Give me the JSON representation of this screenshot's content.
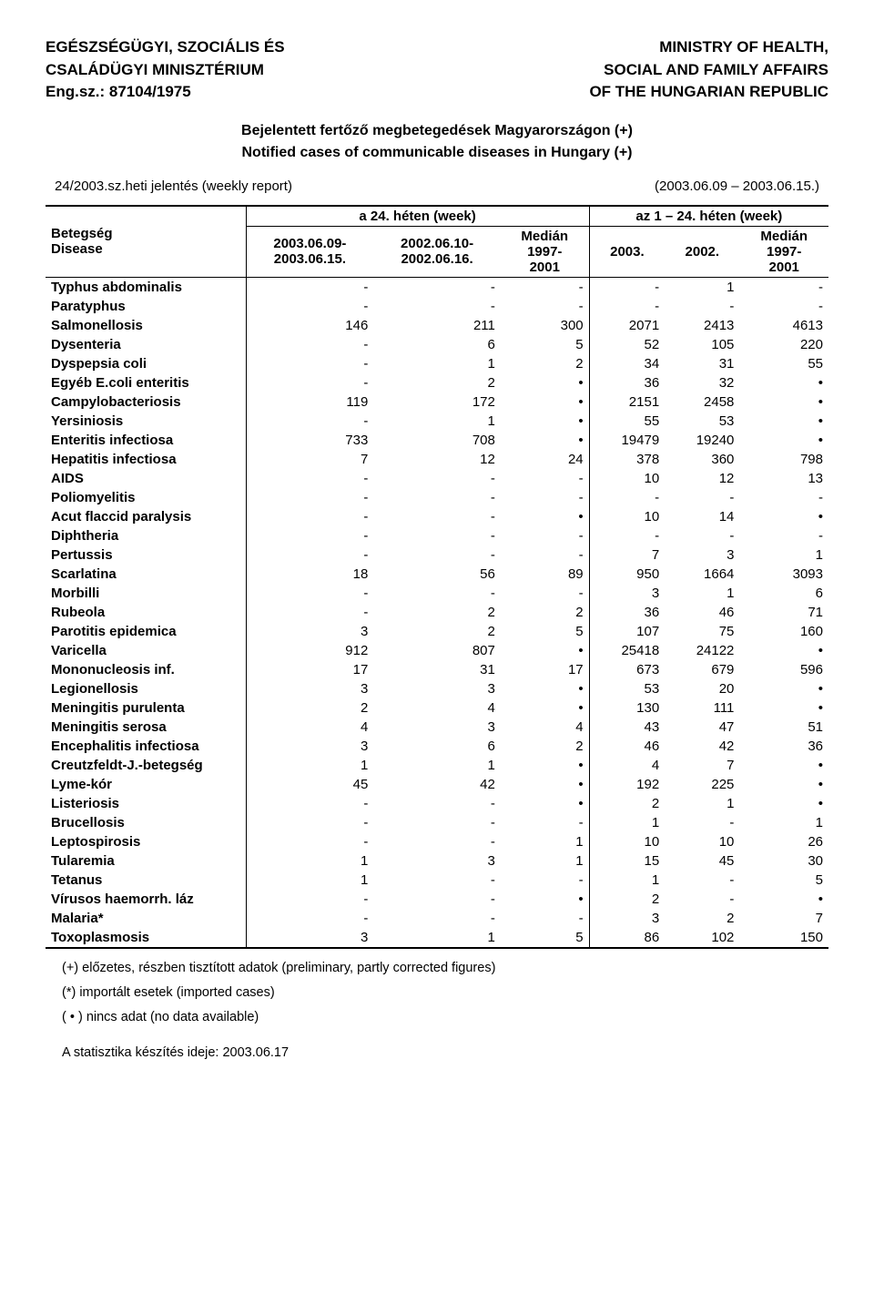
{
  "header": {
    "left": [
      "EGÉSZSÉGÜGYI, SZOCIÁLIS ÉS",
      "CSALÁDÜGYI MINISZTÉRIUM",
      "Eng.sz.: 87104/1975"
    ],
    "right": [
      "MINISTRY OF HEALTH,",
      "SOCIAL AND FAMILY AFFAIRS",
      "OF THE HUNGARIAN REPUBLIC"
    ]
  },
  "title": {
    "line1": "Bejelentett fertőző megbetegedések Magyarországon (+)",
    "line2": "Notified cases of communicable diseases in Hungary (+)"
  },
  "report": {
    "left": "24/2003.sz.heti jelentés (weekly report)",
    "right": "(2003.06.09 – 2003.06.15.)"
  },
  "table": {
    "group_a": "a 24. héten (week)",
    "group_b": "az 1 – 24. héten (week)",
    "col_disease_l1": "Betegség",
    "col_disease_l2": "Disease",
    "cols": [
      {
        "l1": "2003.06.09-",
        "l2": "2003.06.15."
      },
      {
        "l1": "2002.06.10-",
        "l2": "2002.06.16."
      },
      {
        "l1": "Medián",
        "l2": "1997-",
        "l3": "2001"
      },
      {
        "l1": "2003.",
        "l2": ""
      },
      {
        "l1": "2002.",
        "l2": ""
      },
      {
        "l1": "Medián",
        "l2": "1997-",
        "l3": "2001"
      }
    ],
    "rows": [
      {
        "name": "Typhus abdominalis",
        "v": [
          "-",
          "-",
          "-",
          "-",
          "1",
          "-"
        ]
      },
      {
        "name": "Paratyphus",
        "v": [
          "-",
          "-",
          "-",
          "-",
          "-",
          "-"
        ]
      },
      {
        "name": "Salmonellosis",
        "v": [
          "146",
          "211",
          "300",
          "2071",
          "2413",
          "4613"
        ]
      },
      {
        "name": "Dysenteria",
        "v": [
          "-",
          "6",
          "5",
          "52",
          "105",
          "220"
        ]
      },
      {
        "name": "Dyspepsia coli",
        "v": [
          "-",
          "1",
          "2",
          "34",
          "31",
          "55"
        ]
      },
      {
        "name": "Egyéb E.coli enteritis",
        "v": [
          "-",
          "2",
          "•",
          "36",
          "32",
          "•"
        ]
      },
      {
        "name": "Campylobacteriosis",
        "v": [
          "119",
          "172",
          "•",
          "2151",
          "2458",
          "•"
        ]
      },
      {
        "name": "Yersiniosis",
        "v": [
          "-",
          "1",
          "•",
          "55",
          "53",
          "•"
        ]
      },
      {
        "name": "Enteritis infectiosa",
        "v": [
          "733",
          "708",
          "•",
          "19479",
          "19240",
          "•"
        ]
      },
      {
        "name": "Hepatitis infectiosa",
        "v": [
          "7",
          "12",
          "24",
          "378",
          "360",
          "798"
        ]
      },
      {
        "name": "AIDS",
        "v": [
          "-",
          "-",
          "-",
          "10",
          "12",
          "13"
        ]
      },
      {
        "name": "Poliomyelitis",
        "v": [
          "-",
          "-",
          "-",
          "-",
          "-",
          "-"
        ]
      },
      {
        "name": "Acut flaccid paralysis",
        "v": [
          "-",
          "-",
          "•",
          "10",
          "14",
          "•"
        ]
      },
      {
        "name": "Diphtheria",
        "v": [
          "-",
          "-",
          "-",
          "-",
          "-",
          "-"
        ]
      },
      {
        "name": "Pertussis",
        "v": [
          "-",
          "-",
          "-",
          "7",
          "3",
          "1"
        ]
      },
      {
        "name": "Scarlatina",
        "v": [
          "18",
          "56",
          "89",
          "950",
          "1664",
          "3093"
        ]
      },
      {
        "name": "Morbilli",
        "v": [
          "-",
          "-",
          "-",
          "3",
          "1",
          "6"
        ]
      },
      {
        "name": "Rubeola",
        "v": [
          "-",
          "2",
          "2",
          "36",
          "46",
          "71"
        ]
      },
      {
        "name": "Parotitis epidemica",
        "v": [
          "3",
          "2",
          "5",
          "107",
          "75",
          "160"
        ]
      },
      {
        "name": "Varicella",
        "v": [
          "912",
          "807",
          "•",
          "25418",
          "24122",
          "•"
        ]
      },
      {
        "name": "Mononucleosis inf.",
        "v": [
          "17",
          "31",
          "17",
          "673",
          "679",
          "596"
        ]
      },
      {
        "name": "Legionellosis",
        "v": [
          "3",
          "3",
          "•",
          "53",
          "20",
          "•"
        ]
      },
      {
        "name": "Meningitis purulenta",
        "v": [
          "2",
          "4",
          "•",
          "130",
          "111",
          "•"
        ]
      },
      {
        "name": "Meningitis serosa",
        "v": [
          "4",
          "3",
          "4",
          "43",
          "47",
          "51"
        ]
      },
      {
        "name": "Encephalitis infectiosa",
        "v": [
          "3",
          "6",
          "2",
          "46",
          "42",
          "36"
        ]
      },
      {
        "name": "Creutzfeldt-J.-betegség",
        "v": [
          "1",
          "1",
          "•",
          "4",
          "7",
          "•"
        ]
      },
      {
        "name": "Lyme-kór",
        "v": [
          "45",
          "42",
          "•",
          "192",
          "225",
          "•"
        ]
      },
      {
        "name": "Listeriosis",
        "v": [
          "-",
          "-",
          "•",
          "2",
          "1",
          "•"
        ]
      },
      {
        "name": "Brucellosis",
        "v": [
          "-",
          "-",
          "-",
          "1",
          "-",
          "1"
        ]
      },
      {
        "name": "Leptospirosis",
        "v": [
          "-",
          "-",
          "1",
          "10",
          "10",
          "26"
        ]
      },
      {
        "name": "Tularemia",
        "v": [
          "1",
          "3",
          "1",
          "15",
          "45",
          "30"
        ]
      },
      {
        "name": "Tetanus",
        "v": [
          "1",
          "-",
          "-",
          "1",
          "-",
          "5"
        ]
      },
      {
        "name": "Vírusos haemorrh. láz",
        "v": [
          "-",
          "-",
          "•",
          "2",
          "-",
          "•"
        ]
      },
      {
        "name": "Malaria*",
        "v": [
          "-",
          "-",
          "-",
          "3",
          "2",
          "7"
        ]
      },
      {
        "name": "Toxoplasmosis",
        "v": [
          "3",
          "1",
          "5",
          "86",
          "102",
          "150"
        ]
      }
    ]
  },
  "notes": [
    "(+)  előzetes, részben tisztított adatok (preliminary, partly corrected figures)",
    "(*)  importált esetek (imported cases)",
    "( • )  nincs adat (no data available)"
  ],
  "footer": "A statisztika készítés ideje: 2003.06.17"
}
